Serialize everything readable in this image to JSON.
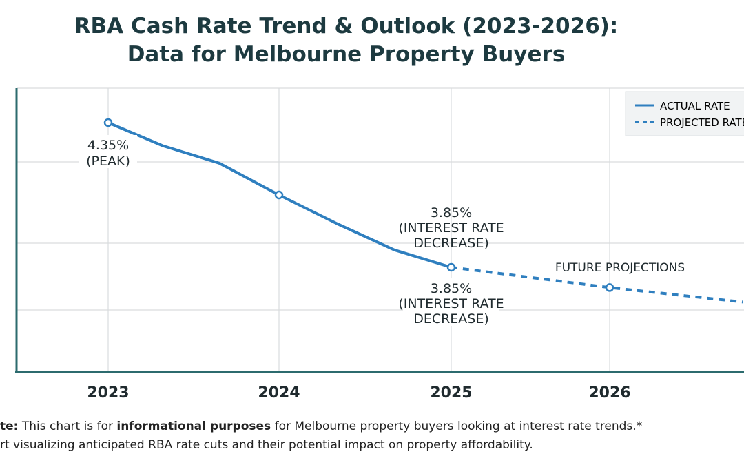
{
  "chart_data": {
    "type": "line",
    "title": "RBA Cash Rate Trend & Outlook (2023-2026):",
    "subtitle": "Data for Melbourne Property Buyers",
    "xlabel": "",
    "ylabel": "",
    "x_ticks": [
      "2023",
      "2024",
      "2025",
      "2026"
    ],
    "ylim": [
      3.55,
      4.6
    ],
    "grid": true,
    "legend_placement": "top-right",
    "series": [
      {
        "name": "ACTUAL RATE",
        "style": "solid",
        "color": "#2f7fbf",
        "x": [
          2023.0,
          2023.32,
          2023.65,
          2024.0,
          2024.34,
          2024.67,
          2025.0
        ],
        "y": [
          4.35,
          4.27,
          4.21,
          4.1,
          4.0,
          3.91,
          3.85
        ],
        "markers_at": [
          2023.0,
          2024.0,
          2025.0
        ]
      },
      {
        "name": "PROJECTED RATE",
        "style": "dashed",
        "color": "#2f7fbf",
        "x": [
          2025.0,
          2026.0,
          2026.84
        ],
        "y": [
          3.85,
          3.78,
          3.73
        ],
        "markers_at": [
          2026.0
        ]
      }
    ],
    "annotations": [
      {
        "line1": "4.35%",
        "line2": "(PEAK)"
      },
      {
        "line1": "3.85%",
        "line2": "(INTEREST RATE",
        "line3": "DECREASE)"
      },
      {
        "line1": "3.85%",
        "line2": "(INTEREST RATE",
        "line3": "DECREASE)"
      },
      {
        "line1": "FUTURE PROJECTIONS"
      }
    ]
  },
  "footnote": {
    "line1_prefix": "te:",
    "line1_a": " This chart is for ",
    "line1_bold": "informational purposes",
    "line1_b": " for Melbourne property buyers looking at interest rate trends.*",
    "line2": "rt visualizing anticipated RBA rate cuts and their potential impact on property affordability."
  }
}
